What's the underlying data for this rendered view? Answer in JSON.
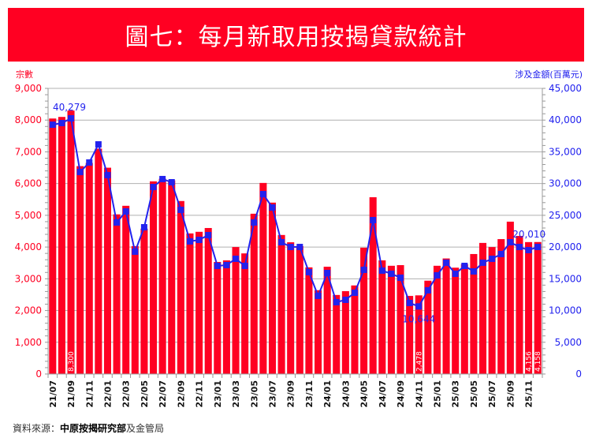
{
  "header": {
    "title": "圖七：每月新取用按揭貸款統計"
  },
  "footer": {
    "prefix": "資料來源：",
    "source_bold": "中原按揭研究部",
    "suffix": "及金管局"
  },
  "chart_data": {
    "type": "bar",
    "title": "圖七：每月新取用按揭貸款統計",
    "left_axis_label": "宗數",
    "right_axis_label": "涉及金額(百萬元)",
    "left_ylim": [
      0,
      9000
    ],
    "right_ylim": [
      0,
      45000
    ],
    "left_ticks": [
      "0",
      "1,000",
      "2,000",
      "3,000",
      "4,000",
      "5,000",
      "6,000",
      "7,000",
      "8,000",
      "9,000"
    ],
    "right_ticks": [
      "0",
      "5,000",
      "10,000",
      "15,000",
      "20,000",
      "25,000",
      "30,000",
      "35,000",
      "40,000",
      "45,000"
    ],
    "grid": true,
    "colors": {
      "bars": "#ff0022",
      "line": "#2222ee"
    },
    "categories": [
      "21/07",
      "21/08",
      "21/09",
      "21/10",
      "21/11",
      "21/12",
      "22/01",
      "22/02",
      "22/03",
      "22/04",
      "22/05",
      "22/06",
      "22/07",
      "22/08",
      "22/09",
      "22/10",
      "22/11",
      "22/12",
      "23/01",
      "23/02",
      "23/03",
      "23/04",
      "23/05",
      "23/06",
      "23/07",
      "23/08",
      "23/09",
      "23/10",
      "23/11",
      "23/12",
      "24/01",
      "24/02",
      "24/03",
      "24/04",
      "24/05",
      "24/06",
      "24/07",
      "24/08",
      "24/09",
      "24/10",
      "24/11",
      "24/12",
      "25/01",
      "25/02",
      "25/03",
      "25/04",
      "25/05",
      "25/06",
      "25/07",
      "25/08",
      "25/09",
      "25/10",
      "25/11",
      "25/12"
    ],
    "series": [
      {
        "name": "宗數",
        "type": "bar",
        "axis": "left",
        "values": [
          8050,
          8100,
          8300,
          6550,
          6650,
          7100,
          6500,
          5030,
          5300,
          4030,
          4580,
          6070,
          6150,
          6100,
          5450,
          4430,
          4480,
          4600,
          3530,
          3580,
          4000,
          3800,
          5050,
          6020,
          5400,
          4380,
          4150,
          4030,
          3360,
          2640,
          3380,
          2490,
          2610,
          2790,
          3980,
          5570,
          3580,
          3410,
          3430,
          2460,
          2478,
          2940,
          3410,
          3640,
          3350,
          3460,
          3780,
          4130,
          4000,
          4250,
          4800,
          4350,
          4156,
          4158
        ]
      },
      {
        "name": "涉及金額(百萬元)",
        "type": "line",
        "axis": "right",
        "values": [
          39280,
          39530,
          40279,
          31820,
          33320,
          36180,
          31330,
          23870,
          25610,
          19270,
          23120,
          29460,
          30710,
          30210,
          25860,
          20890,
          21130,
          21880,
          17030,
          17160,
          18150,
          17030,
          23870,
          28340,
          26230,
          20760,
          20010,
          20010,
          16040,
          12310,
          15910,
          11310,
          11690,
          12800,
          16410,
          24240,
          16290,
          15790,
          15170,
          11190,
          10644,
          13180,
          15540,
          17530,
          15790,
          17030,
          16160,
          17530,
          18150,
          18900,
          20760,
          20010,
          19520,
          20010
        ]
      }
    ],
    "bar_labels": [
      {
        "category": "21/09",
        "text": "8,300"
      },
      {
        "category": "24/11",
        "text": "2,478"
      },
      {
        "category": "25/11",
        "text": "4,156"
      },
      {
        "category": "25/12",
        "text": "4,158"
      }
    ],
    "line_labels": [
      {
        "category": "21/09",
        "text": "40,279"
      },
      {
        "category": "24/11",
        "text": "10,644"
      },
      {
        "category": "25/12",
        "text": "20,010"
      }
    ],
    "x_tick_labels": [
      "21/07",
      "21/09",
      "21/11",
      "22/01",
      "22/03",
      "22/05",
      "22/07",
      "22/09",
      "22/11",
      "23/01",
      "23/03",
      "23/05",
      "23/07",
      "23/09",
      "23/11",
      "24/01",
      "24/03",
      "24/05",
      "24/07",
      "24/09",
      "24/11",
      "25/01",
      "25/03",
      "25/05",
      "25/07",
      "25/09",
      "25/11"
    ]
  }
}
